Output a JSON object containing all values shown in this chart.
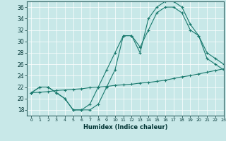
{
  "xlabel": "Humidex (Indice chaleur)",
  "ylabel": "",
  "bg_color": "#c8e8e8",
  "line_color": "#1a7a6e",
  "xlim": [
    -0.5,
    23
  ],
  "ylim": [
    17,
    37
  ],
  "yticks": [
    18,
    20,
    22,
    24,
    26,
    28,
    30,
    32,
    34,
    36
  ],
  "xticks": [
    0,
    1,
    2,
    3,
    4,
    5,
    6,
    7,
    8,
    9,
    10,
    11,
    12,
    13,
    14,
    15,
    16,
    17,
    18,
    19,
    20,
    21,
    22,
    23
  ],
  "line1_x": [
    0,
    1,
    2,
    3,
    4,
    5,
    6,
    7,
    8,
    9,
    10,
    11,
    12,
    13,
    14,
    15,
    16,
    17,
    18,
    19,
    20,
    21,
    22,
    23
  ],
  "line1_y": [
    21.0,
    21.1,
    21.2,
    21.4,
    21.5,
    21.6,
    21.7,
    21.9,
    22.0,
    22.1,
    22.3,
    22.4,
    22.5,
    22.7,
    22.8,
    23.0,
    23.2,
    23.5,
    23.8,
    24.0,
    24.3,
    24.6,
    24.9,
    25.2
  ],
  "line2_x": [
    0,
    1,
    2,
    3,
    4,
    5,
    6,
    7,
    8,
    9,
    10,
    11,
    12,
    13,
    14,
    15,
    16,
    17,
    18,
    19,
    20,
    21,
    22,
    23
  ],
  "line2_y": [
    21,
    22,
    22,
    21,
    20,
    18,
    18,
    18,
    19,
    22,
    25,
    31,
    31,
    28,
    34,
    36,
    37,
    37,
    36,
    33,
    31,
    27,
    26,
    25
  ],
  "line3_x": [
    0,
    1,
    2,
    3,
    4,
    5,
    6,
    7,
    8,
    9,
    10,
    11,
    12,
    13,
    14,
    15,
    16,
    17,
    18,
    19,
    20,
    21,
    22,
    23
  ],
  "line3_y": [
    21,
    22,
    22,
    21,
    20,
    18,
    18,
    19,
    22,
    25,
    28,
    31,
    31,
    29,
    32,
    35,
    36,
    36,
    35,
    32,
    31,
    28,
    27,
    26
  ]
}
